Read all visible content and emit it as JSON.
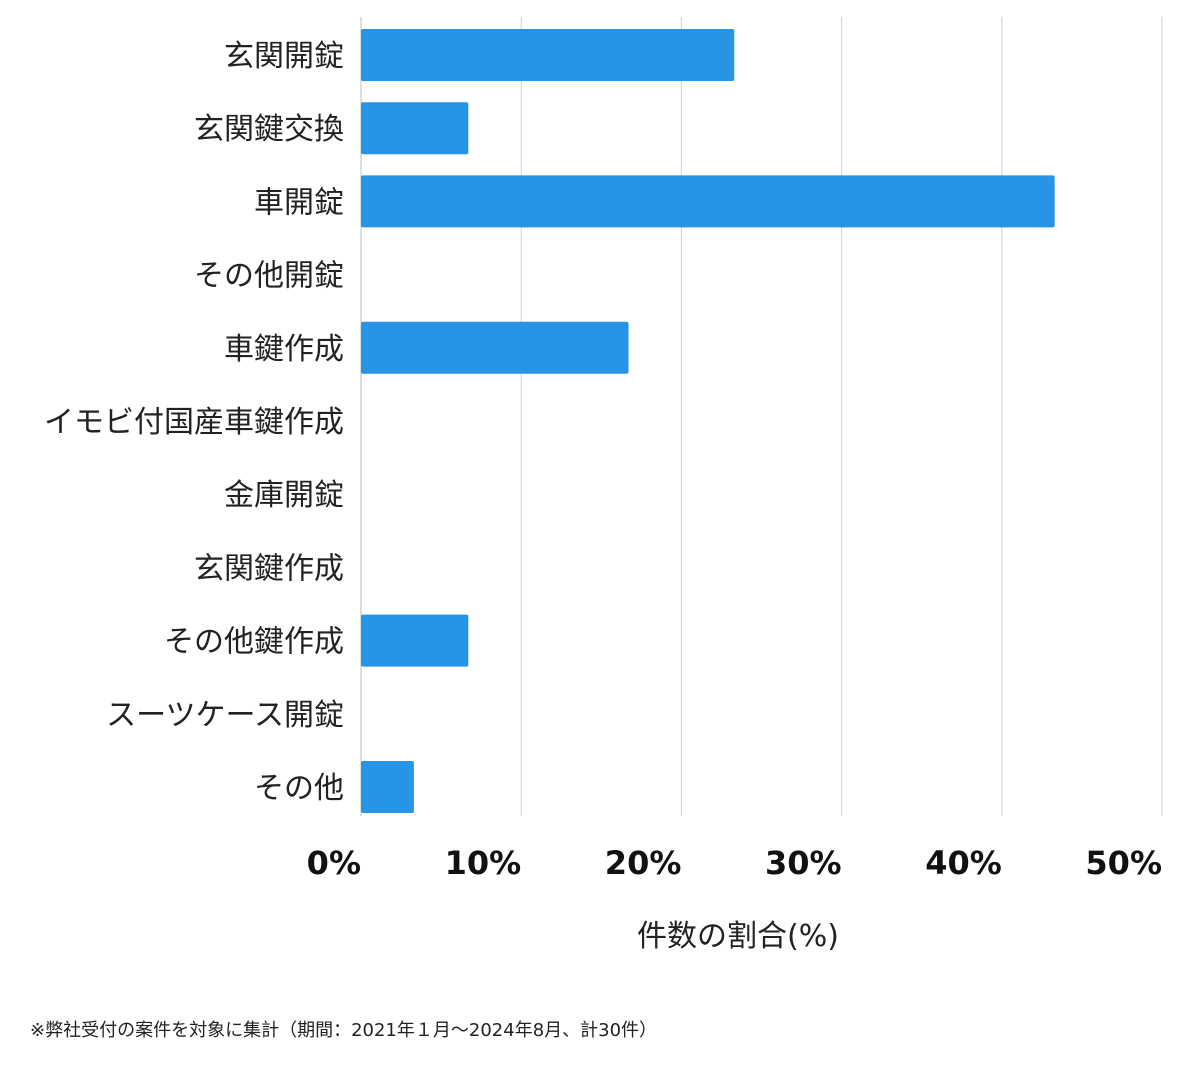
{
  "chart_data": {
    "type": "bar",
    "orientation": "horizontal",
    "categories": [
      "玄関開錠",
      "玄関鍵交換",
      "車開錠",
      "その他開錠",
      "車鍵作成",
      "イモビ付国産車鍵作成",
      "金庫開錠",
      "玄関鍵作成",
      "その他鍵作成",
      "スーツケース開錠",
      "その他"
    ],
    "values": [
      23.3,
      6.7,
      43.3,
      0,
      16.7,
      0,
      0,
      0,
      6.7,
      0,
      3.3
    ],
    "xlabel": "件数の割合(%)",
    "xlim": [
      0,
      50
    ],
    "xticks": [
      "0%",
      "10%",
      "20%",
      "30%",
      "40%",
      "50%"
    ],
    "xtick_values": [
      0,
      10,
      20,
      30,
      40,
      50
    ],
    "grid": true,
    "bar_color": "#2894e6",
    "grid_color": "#d0d0d0"
  },
  "footnote": "※弊社受付の案件を対象に集計（期間：2021年１月〜2024年8月、計30件）"
}
